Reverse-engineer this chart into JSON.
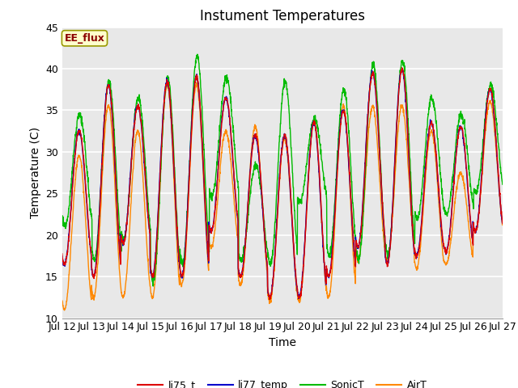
{
  "title": "Instument Temperatures",
  "xlabel": "Time",
  "ylabel": "Temperature (C)",
  "ylim": [
    10,
    45
  ],
  "annotation": "EE_flux",
  "annotation_color": "#8B0000",
  "annotation_bg": "#FFFFCC",
  "annotation_edge": "#999900",
  "fig_bg": "#FFFFFF",
  "plot_bg": "#E8E8E8",
  "legend_labels": [
    "li75_t",
    "li77_temp",
    "SonicT",
    "AirT"
  ],
  "legend_colors": [
    "#DD0000",
    "#0000CC",
    "#00BB00",
    "#FF8800"
  ],
  "xtick_labels": [
    "Jul 12",
    "Jul 13",
    "Jul 14",
    "Jul 15",
    "Jul 16",
    "Jul 17",
    "Jul 18",
    "Jul 19",
    "Jul 20",
    "Jul 21",
    "Jul 22",
    "Jul 23",
    "Jul 24",
    "Jul 25",
    "Jul 26",
    "Jul 27"
  ],
  "ytick_labels": [
    10,
    15,
    20,
    25,
    30,
    35,
    40,
    45
  ],
  "title_fontsize": 12,
  "tick_fontsize": 9,
  "label_fontsize": 10
}
